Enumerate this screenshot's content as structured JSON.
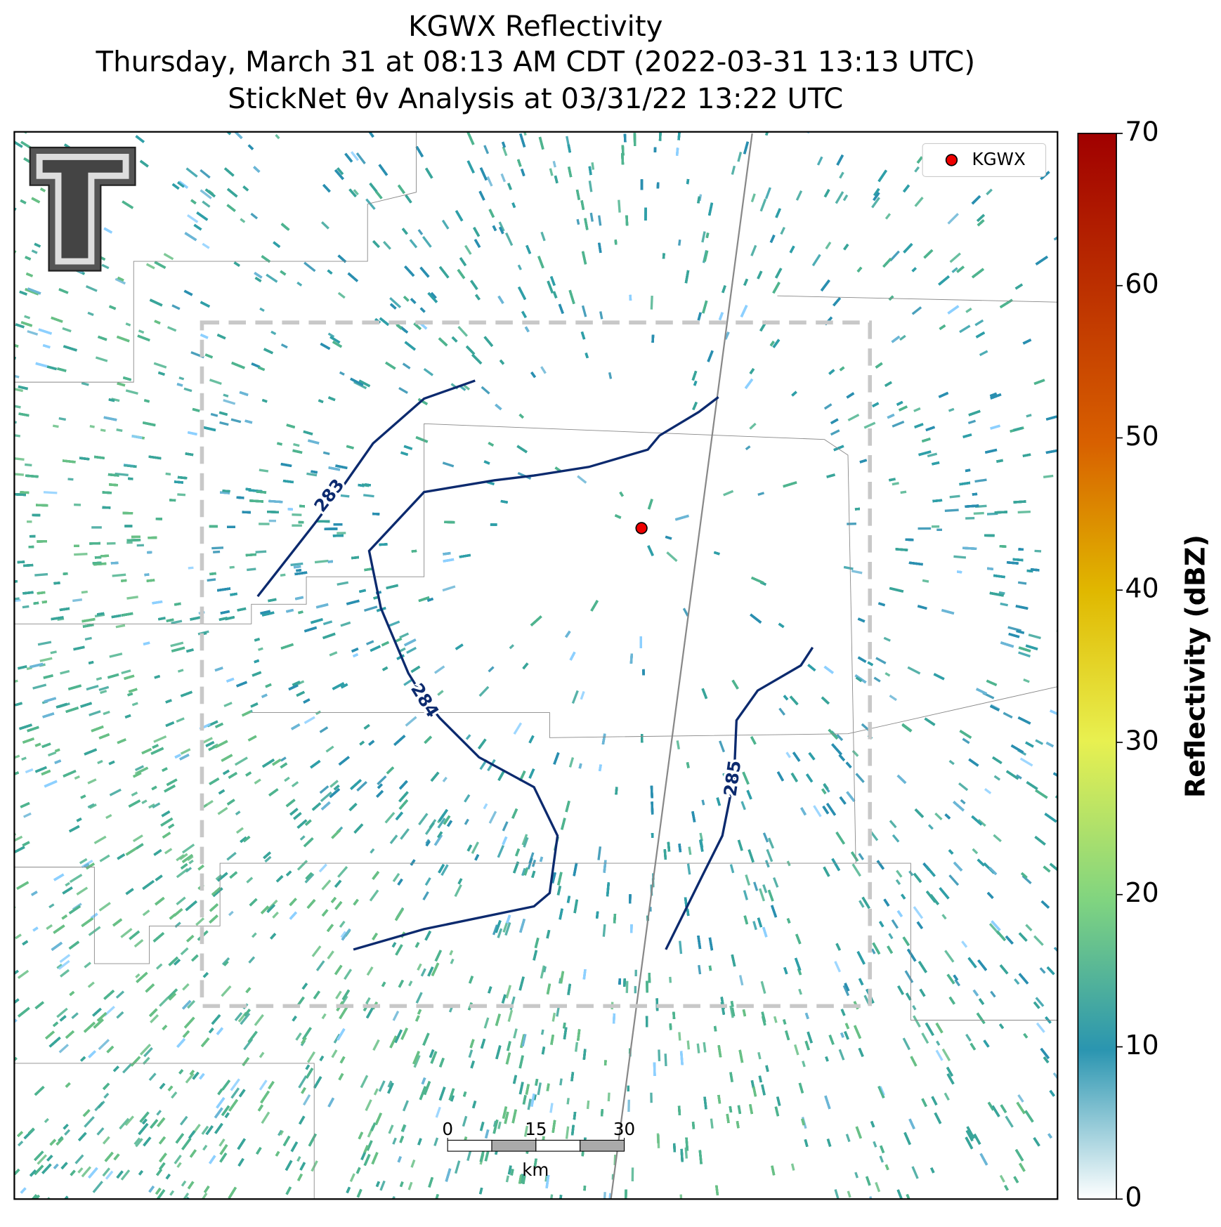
{
  "title": [
    "KGWX Reflectivity",
    "Thursday, March 31 at 08:13 AM CDT (2022-03-31 13:13 UTC)",
    "StickNet θv Analysis at 03/31/22 13:22 UTC"
  ],
  "legend": {
    "label": "KGWX"
  },
  "contours": [
    {
      "label": 283
    },
    {
      "label": 284
    },
    {
      "label": 285
    }
  ],
  "colorbar": {
    "label": "Reflectivity (dBZ)",
    "lim": [
      0,
      70
    ],
    "ticks": [
      0,
      10,
      20,
      30,
      40,
      50,
      60,
      70
    ]
  },
  "scale_bar": {
    "ticks": [
      0,
      15,
      30
    ],
    "unit": "km"
  }
}
